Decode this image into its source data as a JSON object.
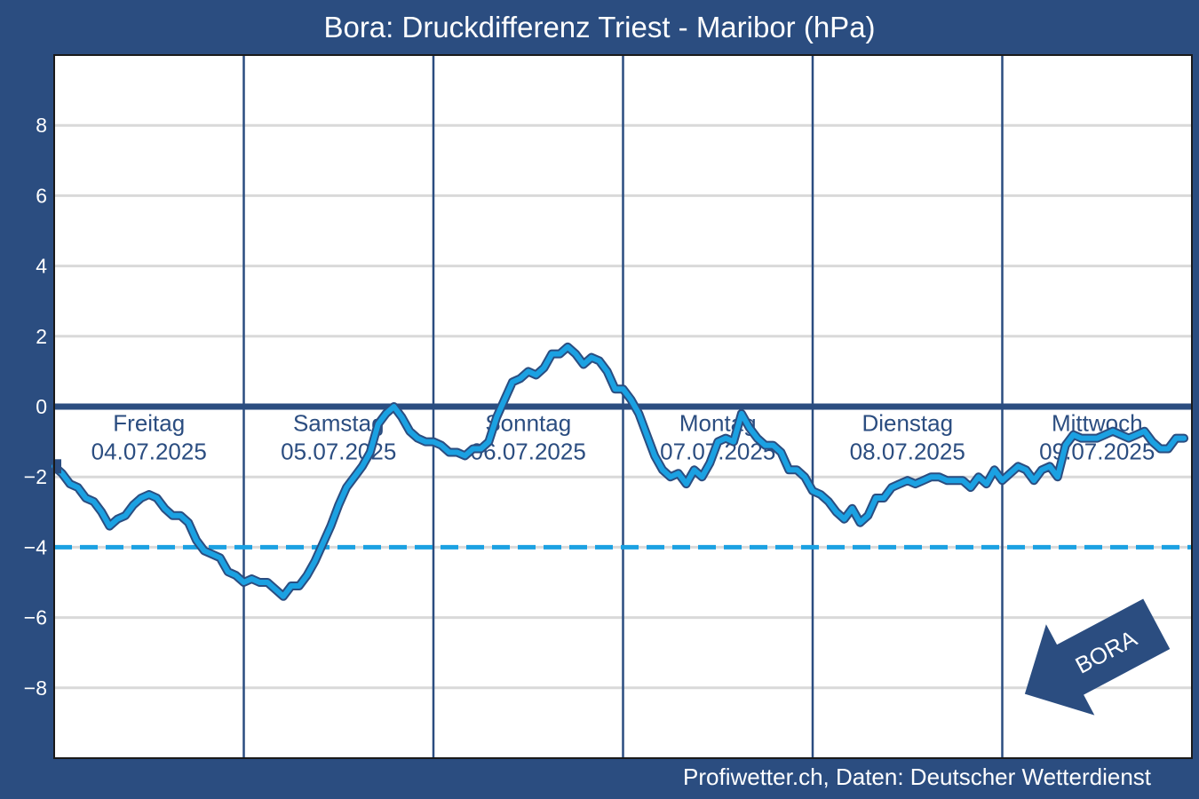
{
  "colors": {
    "frame": "#2b4d80",
    "plot_background": "#ffffff",
    "grid": "#d9d9d9",
    "series_line": "#1ba1e2",
    "threshold_line": "#1ba1e2",
    "zero_line": "#2b4d80",
    "day_separator": "#2b4d80",
    "text_light": "#ffffff",
    "day_text": "#2b4d80"
  },
  "footer": {
    "credit": "Profiwetter.ch, Daten: Deutscher Wetterdienst"
  },
  "badge": {
    "icon": "arrow-icon",
    "label": "BORA"
  },
  "chart_data": {
    "type": "line",
    "title": "Bora: Druckdifferenz Triest - Maribor (hPa)",
    "xlabel": "",
    "ylabel": "",
    "ylim": [
      -10,
      10
    ],
    "xlim": [
      0,
      144
    ],
    "y_ticks": [
      {
        "value": 8,
        "label": "8"
      },
      {
        "value": 6,
        "label": "6"
      },
      {
        "value": 4,
        "label": "4"
      },
      {
        "value": 2,
        "label": "2"
      },
      {
        "value": 0,
        "label": "0"
      },
      {
        "value": -2,
        "label": "−2"
      },
      {
        "value": -4,
        "label": "−4"
      },
      {
        "value": -6,
        "label": "−6"
      },
      {
        "value": -8,
        "label": "−8"
      }
    ],
    "grid": true,
    "reference_lines": [
      {
        "y": 0,
        "style": "solid"
      },
      {
        "y": -4,
        "style": "dashed"
      }
    ],
    "days": [
      {
        "day": "Freitag",
        "date": "04.07.2025"
      },
      {
        "day": "Samstag",
        "date": "05.07.2025"
      },
      {
        "day": "Sonntag",
        "date": "06.07.2025"
      },
      {
        "day": "Montag",
        "date": "07.07.2025"
      },
      {
        "day": "Dienstag",
        "date": "08.07.2025"
      },
      {
        "day": "Mittwoch",
        "date": "09.07.2025"
      }
    ],
    "series": [
      {
        "points": [
          [
            0,
            -1.7
          ],
          [
            1,
            -1.9
          ],
          [
            2,
            -2.2
          ],
          [
            3,
            -2.3
          ],
          [
            4,
            -2.6
          ],
          [
            5,
            -2.7
          ],
          [
            6,
            -3.0
          ],
          [
            7,
            -3.4
          ],
          [
            8,
            -3.2
          ],
          [
            9,
            -3.1
          ],
          [
            10,
            -2.8
          ],
          [
            11,
            -2.6
          ],
          [
            12,
            -2.5
          ],
          [
            13,
            -2.6
          ],
          [
            14,
            -2.9
          ],
          [
            15,
            -3.1
          ],
          [
            16,
            -3.1
          ],
          [
            17,
            -3.3
          ],
          [
            18,
            -3.8
          ],
          [
            19,
            -4.1
          ],
          [
            20,
            -4.2
          ],
          [
            21,
            -4.3
          ],
          [
            22,
            -4.7
          ],
          [
            23,
            -4.8
          ],
          [
            24,
            -5.0
          ],
          [
            25,
            -4.9
          ],
          [
            26,
            -5.0
          ],
          [
            27,
            -5.0
          ],
          [
            28,
            -5.2
          ],
          [
            29,
            -5.4
          ],
          [
            30,
            -5.1
          ],
          [
            31,
            -5.1
          ],
          [
            32,
            -4.8
          ],
          [
            33,
            -4.4
          ],
          [
            34,
            -3.9
          ],
          [
            35,
            -3.4
          ],
          [
            36,
            -2.8
          ],
          [
            37,
            -2.3
          ],
          [
            38,
            -2.0
          ],
          [
            39,
            -1.7
          ],
          [
            40,
            -1.3
          ],
          [
            41,
            -0.5
          ],
          [
            42,
            -0.2
          ],
          [
            43,
            0.0
          ],
          [
            44,
            -0.3
          ],
          [
            45,
            -0.7
          ],
          [
            46,
            -0.9
          ],
          [
            47,
            -1.0
          ],
          [
            48,
            -1.0
          ],
          [
            49,
            -1.1
          ],
          [
            50,
            -1.3
          ],
          [
            51,
            -1.3
          ],
          [
            52,
            -1.4
          ],
          [
            53,
            -1.2
          ],
          [
            54,
            -1.2
          ],
          [
            55,
            -1.0
          ],
          [
            56,
            -0.3
          ],
          [
            57,
            0.2
          ],
          [
            58,
            0.7
          ],
          [
            59,
            0.8
          ],
          [
            60,
            1.0
          ],
          [
            61,
            0.9
          ],
          [
            62,
            1.1
          ],
          [
            63,
            1.5
          ],
          [
            64,
            1.5
          ],
          [
            65,
            1.7
          ],
          [
            66,
            1.5
          ],
          [
            67,
            1.2
          ],
          [
            68,
            1.4
          ],
          [
            69,
            1.3
          ],
          [
            70,
            1.0
          ],
          [
            71,
            0.5
          ],
          [
            72,
            0.5
          ],
          [
            73,
            0.2
          ],
          [
            74,
            -0.2
          ],
          [
            75,
            -0.8
          ],
          [
            76,
            -1.4
          ],
          [
            77,
            -1.8
          ],
          [
            78,
            -2.0
          ],
          [
            79,
            -1.9
          ],
          [
            80,
            -2.2
          ],
          [
            81,
            -1.8
          ],
          [
            82,
            -2.0
          ],
          [
            83,
            -1.6
          ],
          [
            84,
            -1.0
          ],
          [
            85,
            -0.9
          ],
          [
            86,
            -1.0
          ],
          [
            87,
            -0.2
          ],
          [
            88,
            -0.6
          ],
          [
            89,
            -0.9
          ],
          [
            90,
            -1.1
          ],
          [
            91,
            -1.1
          ],
          [
            92,
            -1.3
          ],
          [
            93,
            -1.8
          ],
          [
            94,
            -1.8
          ],
          [
            95,
            -2.0
          ],
          [
            96,
            -2.4
          ],
          [
            97,
            -2.5
          ],
          [
            98,
            -2.7
          ],
          [
            99,
            -3.0
          ],
          [
            100,
            -3.2
          ],
          [
            101,
            -2.9
          ],
          [
            102,
            -3.3
          ],
          [
            103,
            -3.1
          ],
          [
            104,
            -2.6
          ],
          [
            105,
            -2.6
          ],
          [
            106,
            -2.3
          ],
          [
            107,
            -2.2
          ],
          [
            108,
            -2.1
          ],
          [
            109,
            -2.2
          ],
          [
            110,
            -2.1
          ],
          [
            111,
            -2.0
          ],
          [
            112,
            -2.0
          ],
          [
            113,
            -2.1
          ],
          [
            114,
            -2.1
          ],
          [
            115,
            -2.1
          ],
          [
            116,
            -2.3
          ],
          [
            117,
            -2.0
          ],
          [
            118,
            -2.2
          ],
          [
            119,
            -1.8
          ],
          [
            120,
            -2.1
          ],
          [
            121,
            -1.9
          ],
          [
            122,
            -1.7
          ],
          [
            123,
            -1.8
          ],
          [
            124,
            -2.1
          ],
          [
            125,
            -1.8
          ],
          [
            126,
            -1.7
          ],
          [
            127,
            -2.0
          ],
          [
            128,
            -1.1
          ],
          [
            129,
            -0.8
          ],
          [
            130,
            -0.9
          ],
          [
            131,
            -0.9
          ],
          [
            132,
            -0.9
          ],
          [
            133,
            -0.8
          ],
          [
            134,
            -0.7
          ],
          [
            135,
            -0.8
          ],
          [
            136,
            -0.9
          ],
          [
            137,
            -0.8
          ],
          [
            138,
            -0.7
          ],
          [
            139,
            -1.0
          ],
          [
            140,
            -1.2
          ],
          [
            141,
            -1.2
          ],
          [
            142,
            -0.9
          ],
          [
            143,
            -0.9
          ]
        ]
      }
    ]
  }
}
